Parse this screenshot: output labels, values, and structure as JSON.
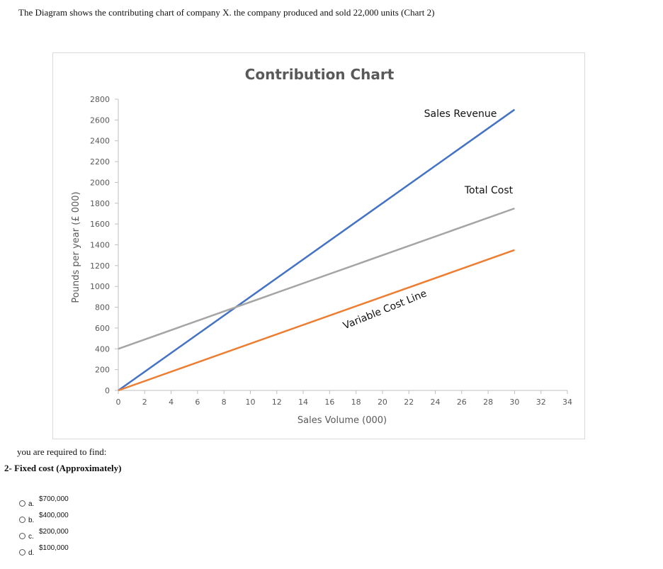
{
  "question": {
    "intro": "The Diagram shows the contributing chart of company X. the company produced and sold 22,000 units (Chart 2)",
    "required": "you are required to find:",
    "prompt": "2-   Fixed cost (Approximately)"
  },
  "options": [
    {
      "letter": "a.",
      "value": "$700,000"
    },
    {
      "letter": "b.",
      "value": "$400,000"
    },
    {
      "letter": "c.",
      "value": "$200,000"
    },
    {
      "letter": "d.",
      "value": "$100,000"
    }
  ],
  "chart_data": {
    "type": "line",
    "title": "Contribution Chart",
    "xlabel": "Sales Volume (000)",
    "ylabel": "Pounds per year (£ 000)",
    "xlim": [
      0,
      34
    ],
    "ylim": [
      0,
      2800
    ],
    "x_ticks": [
      0,
      2,
      4,
      6,
      8,
      10,
      12,
      14,
      16,
      18,
      20,
      22,
      24,
      26,
      28,
      30,
      32,
      34
    ],
    "y_ticks": [
      0,
      200,
      400,
      600,
      800,
      1000,
      1200,
      1400,
      1600,
      1800,
      2000,
      2200,
      2400,
      2600,
      2800
    ],
    "grid": false,
    "series": [
      {
        "name": "Sales Revenue",
        "color": "#4472c4",
        "x": [
          0,
          30
        ],
        "y": [
          0,
          2700
        ]
      },
      {
        "name": "Total Cost",
        "color": "#a5a5a5",
        "x": [
          0,
          30
        ],
        "y": [
          400,
          1750
        ]
      },
      {
        "name": "Variable Cost Line",
        "color": "#ed7d31",
        "x": [
          0,
          30
        ],
        "y": [
          0,
          1350
        ]
      }
    ]
  }
}
